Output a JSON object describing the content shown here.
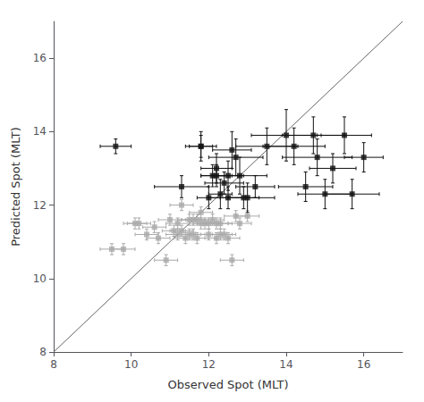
{
  "chart_data": {
    "type": "scatter",
    "xlabel": "Observed Spot (MLT)",
    "ylabel": "Predicted Spot (MLT)",
    "xlim": [
      8,
      17
    ],
    "ylim": [
      8,
      17
    ],
    "xticks": [
      8,
      10,
      12,
      14,
      16
    ],
    "yticks": [
      8,
      10,
      12,
      14,
      16
    ],
    "grid": false,
    "series": [
      {
        "type": "line",
        "color": "#666666",
        "x": [
          8,
          17
        ],
        "y": [
          8,
          17
        ]
      },
      {
        "type": "scatter",
        "color": "#aaaaaa",
        "marker": "square",
        "x": [
          9.5,
          9.8,
          10.1,
          10.2,
          10.4,
          10.6,
          10.7,
          10.9,
          11.0,
          11.1,
          11.2,
          11.2,
          11.3,
          11.3,
          11.4,
          11.5,
          11.5,
          11.6,
          11.6,
          11.7,
          11.7,
          11.8,
          11.8,
          11.9,
          12.0,
          12.0,
          12.1,
          12.2,
          12.2,
          12.3,
          12.3,
          12.4,
          12.5,
          12.6,
          12.7,
          12.8,
          13.0
        ],
        "y": [
          10.8,
          10.8,
          11.5,
          11.5,
          11.2,
          11.4,
          11.1,
          10.5,
          11.6,
          11.3,
          11.5,
          11.2,
          11.3,
          12.0,
          11.1,
          11.6,
          11.2,
          11.2,
          11.6,
          11.6,
          11.1,
          11.8,
          11.5,
          11.5,
          11.2,
          11.5,
          11.6,
          11.1,
          11.5,
          11.5,
          11.2,
          11.2,
          11.1,
          10.5,
          11.7,
          11.5,
          11.7
        ],
        "xerr": [
          0.3,
          0.3,
          0.3,
          0.3,
          0.3,
          0.3,
          0.3,
          0.3,
          0.3,
          0.3,
          0.3,
          0.3,
          0.3,
          0.3,
          0.3,
          0.3,
          0.3,
          0.3,
          0.3,
          0.3,
          0.3,
          0.3,
          0.3,
          0.3,
          0.3,
          0.3,
          0.3,
          0.3,
          0.3,
          0.3,
          0.3,
          0.3,
          0.3,
          0.3,
          0.3,
          0.3,
          0.3
        ],
        "yerr": [
          0.15,
          0.15,
          0.15,
          0.15,
          0.15,
          0.15,
          0.15,
          0.15,
          0.15,
          0.15,
          0.15,
          0.15,
          0.15,
          0.15,
          0.15,
          0.15,
          0.15,
          0.15,
          0.15,
          0.15,
          0.15,
          0.15,
          0.15,
          0.15,
          0.15,
          0.15,
          0.15,
          0.15,
          0.15,
          0.15,
          0.15,
          0.15,
          0.15,
          0.15,
          0.15,
          0.15,
          0.15
        ]
      },
      {
        "type": "scatter",
        "color": "#111111",
        "marker": "square",
        "x": [
          9.6,
          11.3,
          11.8,
          11.8,
          12.0,
          12.1,
          12.2,
          12.2,
          12.3,
          12.4,
          12.5,
          12.5,
          12.6,
          12.7,
          12.8,
          12.9,
          13.0,
          13.2,
          13.5,
          14.0,
          14.2,
          14.5,
          14.7,
          14.8,
          15.0,
          15.2,
          15.5,
          15.7,
          16.0
        ],
        "y": [
          13.6,
          12.5,
          13.6,
          13.6,
          12.2,
          12.8,
          12.8,
          13.0,
          12.3,
          12.6,
          12.2,
          12.8,
          13.5,
          13.3,
          12.8,
          12.2,
          12.2,
          12.5,
          13.6,
          13.9,
          13.6,
          12.5,
          13.9,
          13.3,
          12.3,
          13.0,
          13.9,
          12.3,
          13.3
        ],
        "xerr": [
          0.4,
          0.7,
          0.4,
          0.3,
          0.3,
          0.3,
          0.4,
          0.4,
          0.3,
          0.5,
          0.5,
          0.4,
          0.5,
          0.7,
          0.7,
          0.4,
          0.7,
          0.5,
          0.8,
          0.9,
          0.8,
          0.7,
          0.8,
          0.9,
          0.7,
          0.6,
          0.7,
          0.7,
          0.5
        ],
        "yerr": [
          0.2,
          0.3,
          0.4,
          0.3,
          0.3,
          0.3,
          0.3,
          0.4,
          0.4,
          0.3,
          0.3,
          0.4,
          0.5,
          0.5,
          0.5,
          0.3,
          0.4,
          0.3,
          0.5,
          0.7,
          0.5,
          0.4,
          0.5,
          0.5,
          0.4,
          0.4,
          0.5,
          0.4,
          0.4
        ]
      }
    ]
  }
}
